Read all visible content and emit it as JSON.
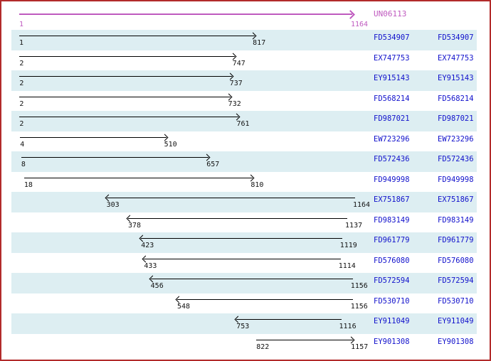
{
  "colors": {
    "frame_border": "#b22a2a",
    "row_band": "#ddeef2",
    "reference_magenta": "#bf5abf",
    "accession_blue": "#1111cc",
    "alignment_arrow": "#000000",
    "background": "#ffffff"
  },
  "chart_data": {
    "type": "range",
    "title": "",
    "xlabel": "",
    "ylabel": "",
    "axis_range": [
      1,
      1164
    ],
    "grid": false,
    "legend": false,
    "reference": {
      "name": "UN06113",
      "start": 1,
      "end": 1164,
      "strand": "+"
    },
    "alignments": [
      {
        "accession": "FD534907",
        "start": 1,
        "end": 817,
        "strand": "+"
      },
      {
        "accession": "EX747753",
        "start": 2,
        "end": 747,
        "strand": "+"
      },
      {
        "accession": "EY915143",
        "start": 2,
        "end": 737,
        "strand": "+"
      },
      {
        "accession": "FD568214",
        "start": 2,
        "end": 732,
        "strand": "+"
      },
      {
        "accession": "FD987021",
        "start": 2,
        "end": 761,
        "strand": "+"
      },
      {
        "accession": "EW723296",
        "start": 4,
        "end": 510,
        "strand": "+"
      },
      {
        "accession": "FD572436",
        "start": 8,
        "end": 657,
        "strand": "+"
      },
      {
        "accession": "FD949998",
        "start": 18,
        "end": 810,
        "strand": "+"
      },
      {
        "accession": "EX751867",
        "start": 303,
        "end": 1164,
        "strand": "-"
      },
      {
        "accession": "FD983149",
        "start": 378,
        "end": 1137,
        "strand": "-"
      },
      {
        "accession": "FD961779",
        "start": 423,
        "end": 1119,
        "strand": "-"
      },
      {
        "accession": "FD576080",
        "start": 433,
        "end": 1114,
        "strand": "-"
      },
      {
        "accession": "FD572594",
        "start": 456,
        "end": 1156,
        "strand": "-"
      },
      {
        "accession": "FD530710",
        "start": 548,
        "end": 1156,
        "strand": "-"
      },
      {
        "accession": "EY911049",
        "start": 753,
        "end": 1116,
        "strand": "-"
      },
      {
        "accession": "EY901308",
        "start": 822,
        "end": 1157,
        "strand": "+"
      }
    ]
  }
}
